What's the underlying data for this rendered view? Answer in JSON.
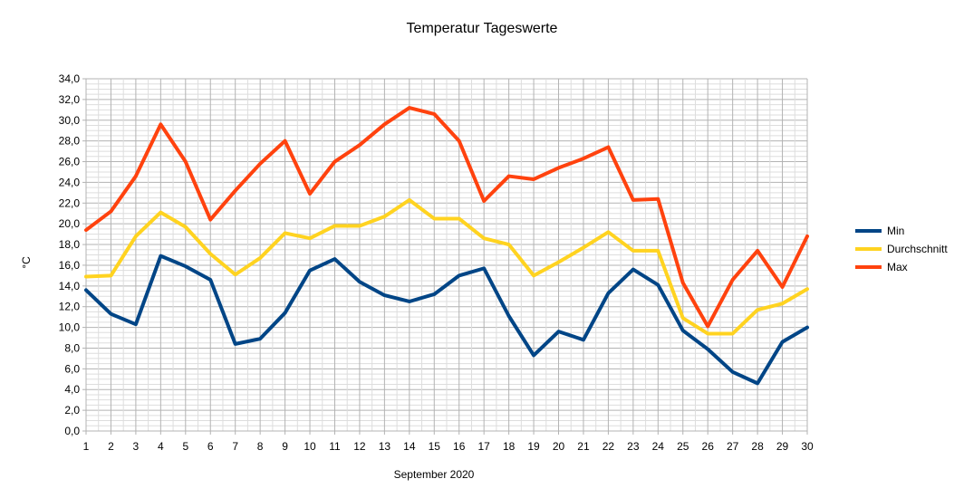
{
  "chart_data": {
    "type": "line",
    "title": "Temperatur Tageswerte",
    "xlabel": "September 2020",
    "ylabel": "°C",
    "ylim": [
      0,
      34
    ],
    "y_tick_step": 2,
    "y_tick_format": "comma-1-decimal",
    "grid": "on (major and minor)",
    "legend_placement": "right",
    "categories": [
      "1",
      "2",
      "3",
      "4",
      "5",
      "6",
      "7",
      "8",
      "9",
      "10",
      "11",
      "12",
      "13",
      "14",
      "15",
      "16",
      "17",
      "18",
      "19",
      "20",
      "21",
      "22",
      "23",
      "24",
      "25",
      "26",
      "27",
      "28",
      "29",
      "30"
    ],
    "series": [
      {
        "name": "Min",
        "color": "#004586",
        "values": [
          13.6,
          11.3,
          10.3,
          16.9,
          15.9,
          14.6,
          8.4,
          8.9,
          11.4,
          15.5,
          16.6,
          14.4,
          13.1,
          12.5,
          13.2,
          15.0,
          15.7,
          11.1,
          7.3,
          9.6,
          8.8,
          13.3,
          15.6,
          14.1,
          9.7,
          7.9,
          5.7,
          4.6,
          8.6,
          10.0
        ]
      },
      {
        "name": "Durchschnitt",
        "color": "#FFD320",
        "values": [
          14.9,
          15.0,
          18.8,
          21.1,
          19.7,
          17.1,
          15.1,
          16.7,
          19.1,
          18.6,
          19.8,
          19.8,
          20.7,
          22.3,
          20.5,
          20.5,
          18.6,
          18.0,
          15.0,
          16.3,
          17.7,
          19.2,
          17.4,
          17.4,
          10.9,
          9.4,
          9.4,
          11.7,
          12.3,
          13.7
        ]
      },
      {
        "name": "Max",
        "color": "#FF420E",
        "values": [
          19.4,
          21.2,
          24.6,
          29.6,
          26.0,
          20.4,
          23.2,
          25.8,
          28.0,
          22.9,
          26.0,
          27.6,
          29.6,
          31.2,
          30.6,
          28.0,
          22.2,
          24.6,
          24.3,
          25.4,
          26.3,
          27.4,
          22.3,
          22.4,
          14.3,
          10.1,
          14.6,
          17.4,
          13.9,
          18.8
        ]
      }
    ]
  }
}
